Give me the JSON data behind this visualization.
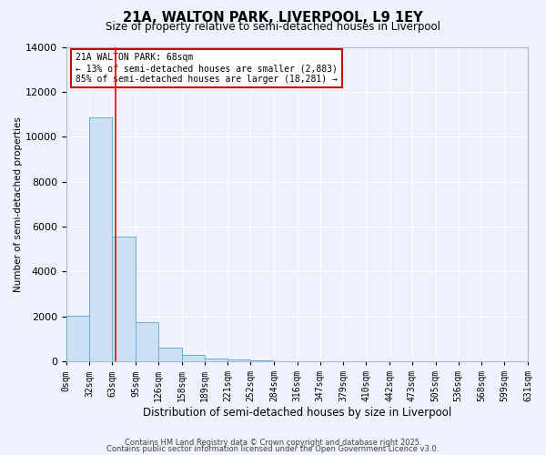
{
  "title": "21A, WALTON PARK, LIVERPOOL, L9 1EY",
  "subtitle": "Size of property relative to semi-detached houses in Liverpool",
  "xlabel": "Distribution of semi-detached houses by size in Liverpool",
  "ylabel": "Number of semi-detached properties",
  "bin_edges": [
    0,
    32,
    63,
    95,
    126,
    158,
    189,
    221,
    252,
    284,
    316,
    347,
    379,
    410,
    442,
    473,
    505,
    536,
    568,
    599,
    631
  ],
  "bin_counts": [
    2050,
    10850,
    5550,
    1750,
    620,
    280,
    135,
    75,
    55,
    15,
    5,
    5,
    0,
    0,
    0,
    0,
    0,
    0,
    0,
    0
  ],
  "bar_color": "#cce0f5",
  "bar_edge_color": "#6aaed6",
  "red_line_x": 68,
  "annotation_title": "21A WALTON PARK: 68sqm",
  "annotation_line1": "← 13% of semi-detached houses are smaller (2,883)",
  "annotation_line2": "85% of semi-detached houses are larger (18,281) →",
  "annotation_box_color": "#ffffff",
  "annotation_box_edge_color": "#cc0000",
  "ylim": [
    0,
    14000
  ],
  "yticks": [
    0,
    2000,
    4000,
    6000,
    8000,
    10000,
    12000,
    14000
  ],
  "background_color": "#eef2fc",
  "grid_color": "#ffffff",
  "footer1": "Contains HM Land Registry data © Crown copyright and database right 2025.",
  "footer2": "Contains public sector information licensed under the Open Government Licence v3.0."
}
